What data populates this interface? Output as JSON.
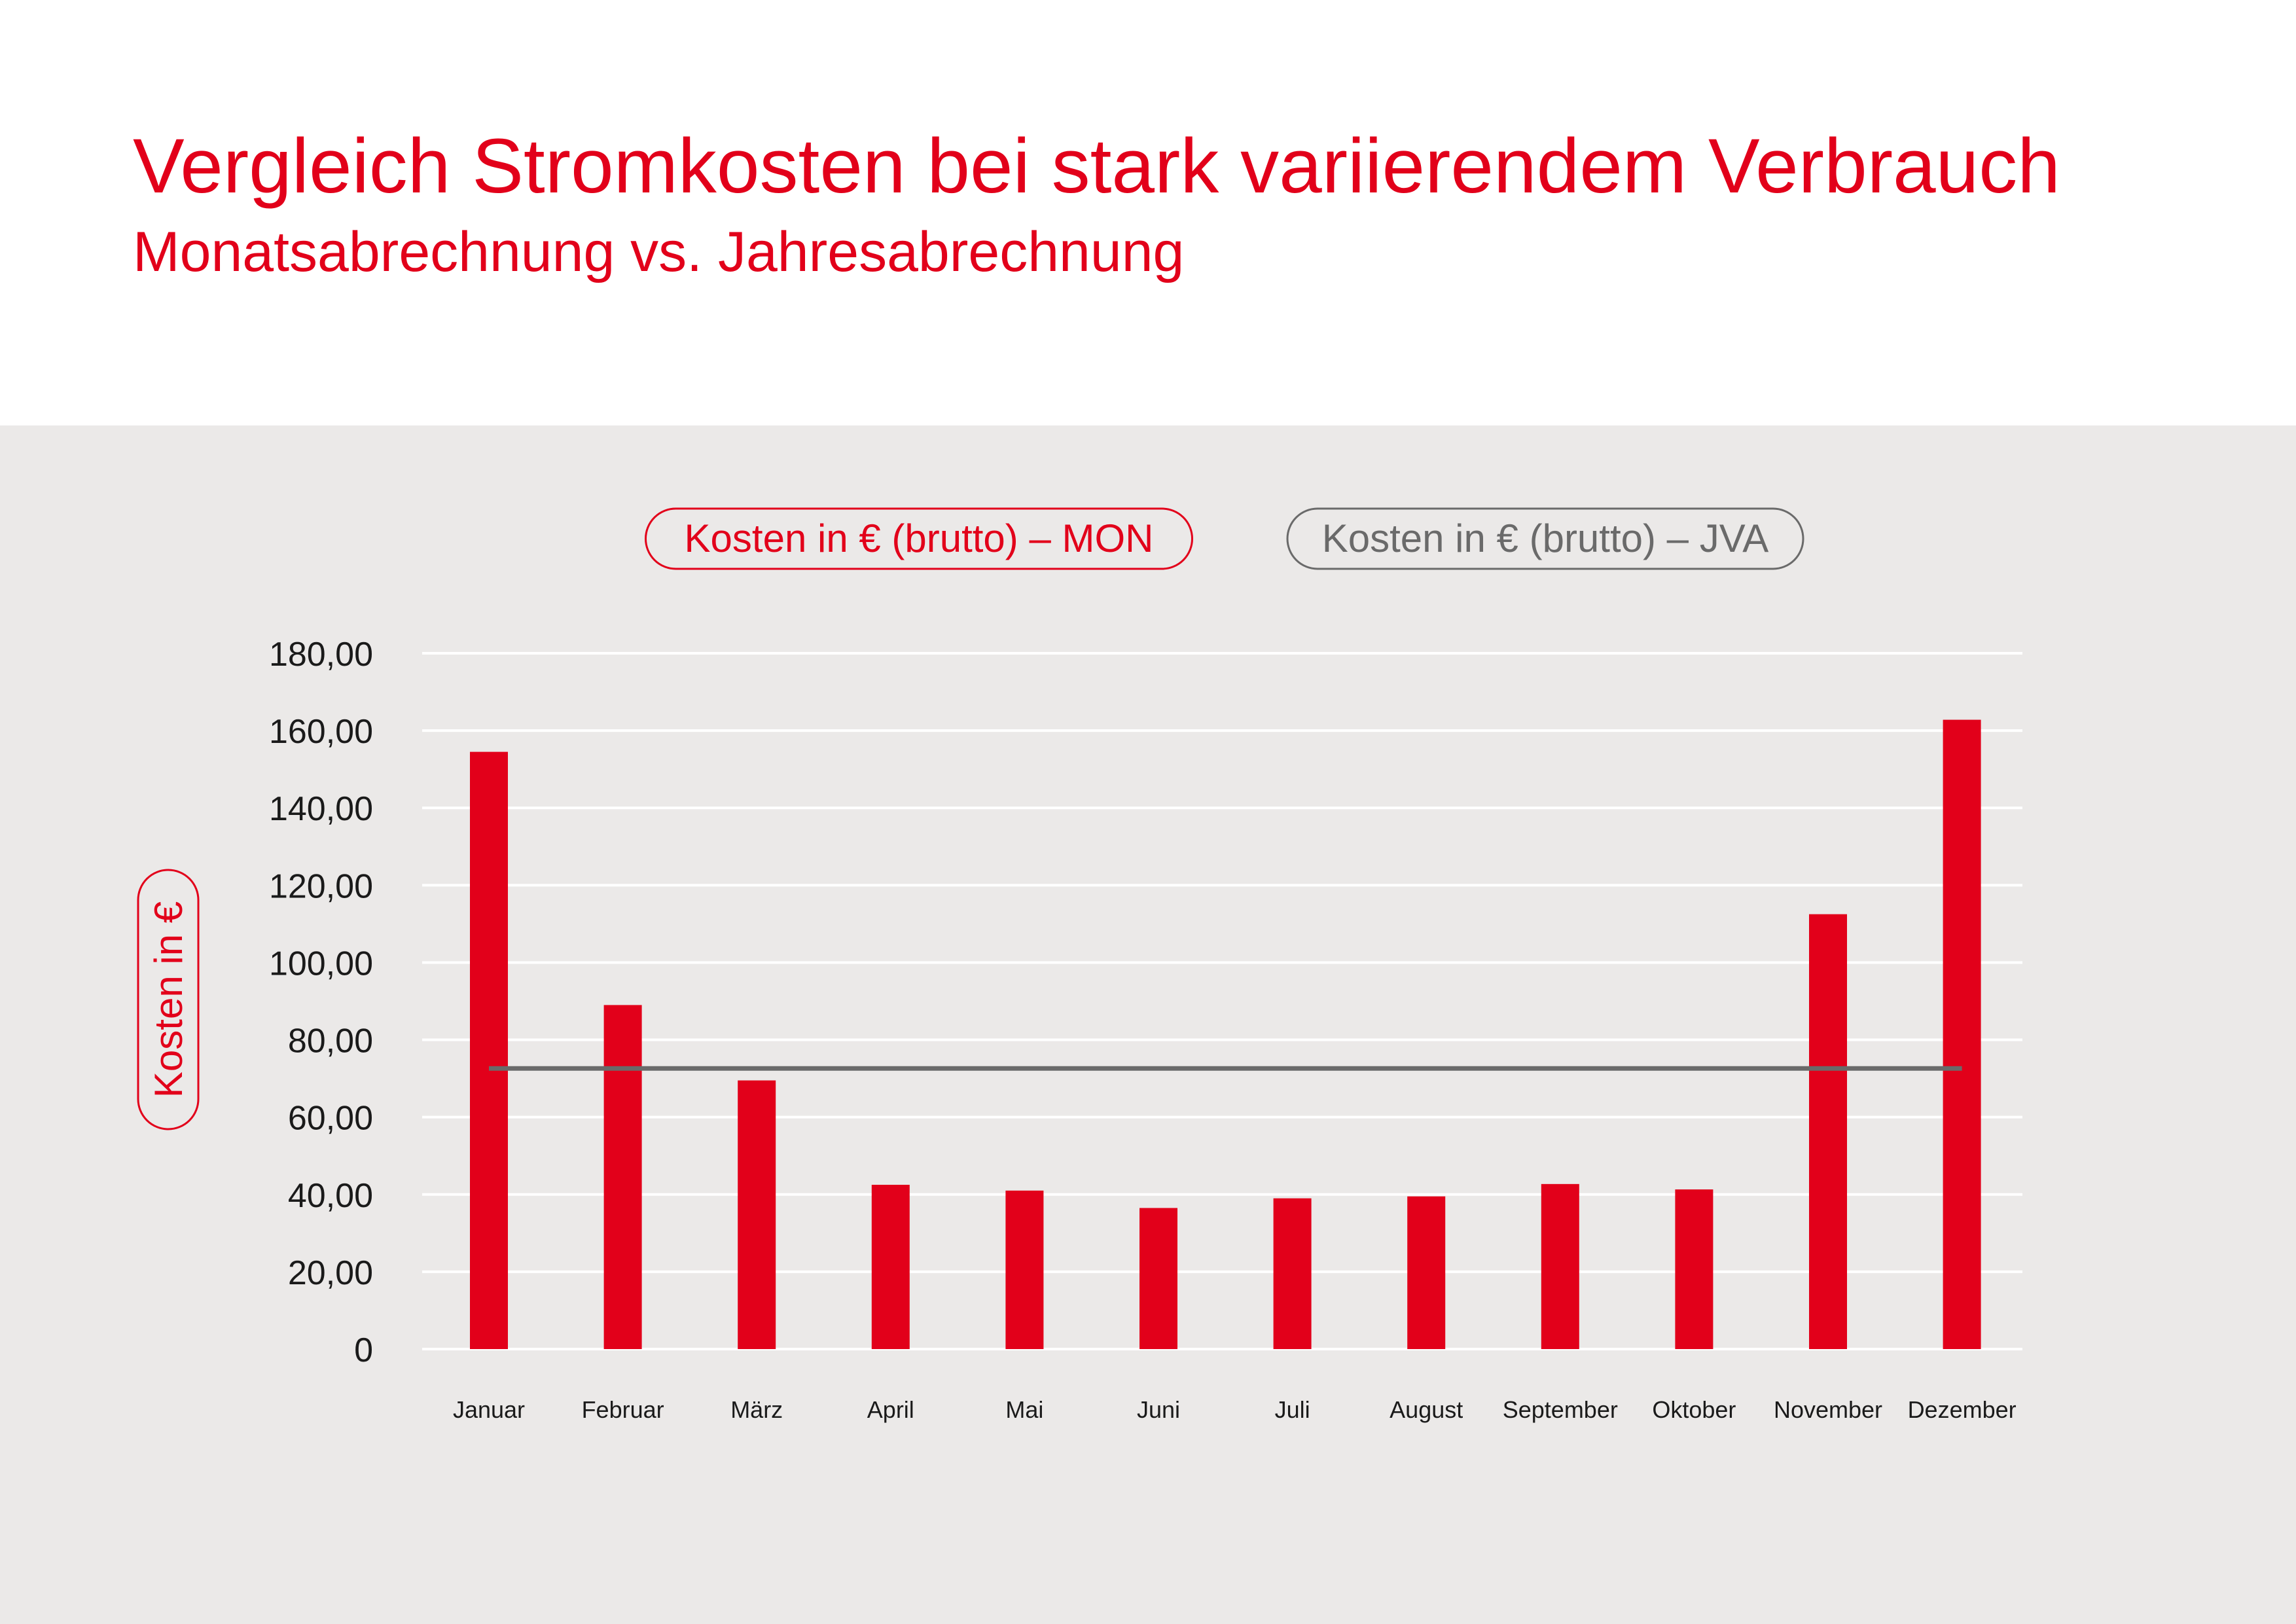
{
  "header": {
    "title": "Vergleich Stromkosten bei stark variierendem Verbrauch",
    "subtitle": "Monatsabrechnung vs. Jahresabrechnung"
  },
  "colors": {
    "accent": "#e2001a",
    "panel_background": "#ebe9e8",
    "jva_line": "#6a6a6a",
    "gridline": "#ffffff",
    "text": "#1a1a1a"
  },
  "chart_data": {
    "type": "bar",
    "title": "",
    "xlabel": "",
    "ylabel": "Kosten in €",
    "ylim": [
      0,
      180
    ],
    "yticks": [
      0,
      20,
      40,
      60,
      80,
      100,
      120,
      140,
      160,
      180
    ],
    "ytick_labels": [
      "0",
      "20,00",
      "40,00",
      "60,00",
      "80,00",
      "100,00",
      "120,00",
      "140,00",
      "160,00",
      "180,00"
    ],
    "grid": true,
    "legend_position": "top-center",
    "categories": [
      "Januar",
      "Februar",
      "März",
      "April",
      "Mai",
      "Juni",
      "Juli",
      "August",
      "September",
      "Oktober",
      "November",
      "Dezember"
    ],
    "series": [
      {
        "name": "Kosten in € (brutto) – MON",
        "type": "bar",
        "color": "#e2001a",
        "values": [
          154.5,
          89,
          69.5,
          42.5,
          41,
          36.5,
          39,
          39.5,
          42.7,
          41.3,
          112.5,
          162.8
        ]
      },
      {
        "name": "Kosten in € (brutto) – JVA",
        "type": "line",
        "color": "#6a6a6a",
        "values": [
          72.6,
          72.6,
          72.6,
          72.6,
          72.6,
          72.6,
          72.6,
          72.6,
          72.6,
          72.6,
          72.6,
          72.6
        ]
      }
    ]
  }
}
